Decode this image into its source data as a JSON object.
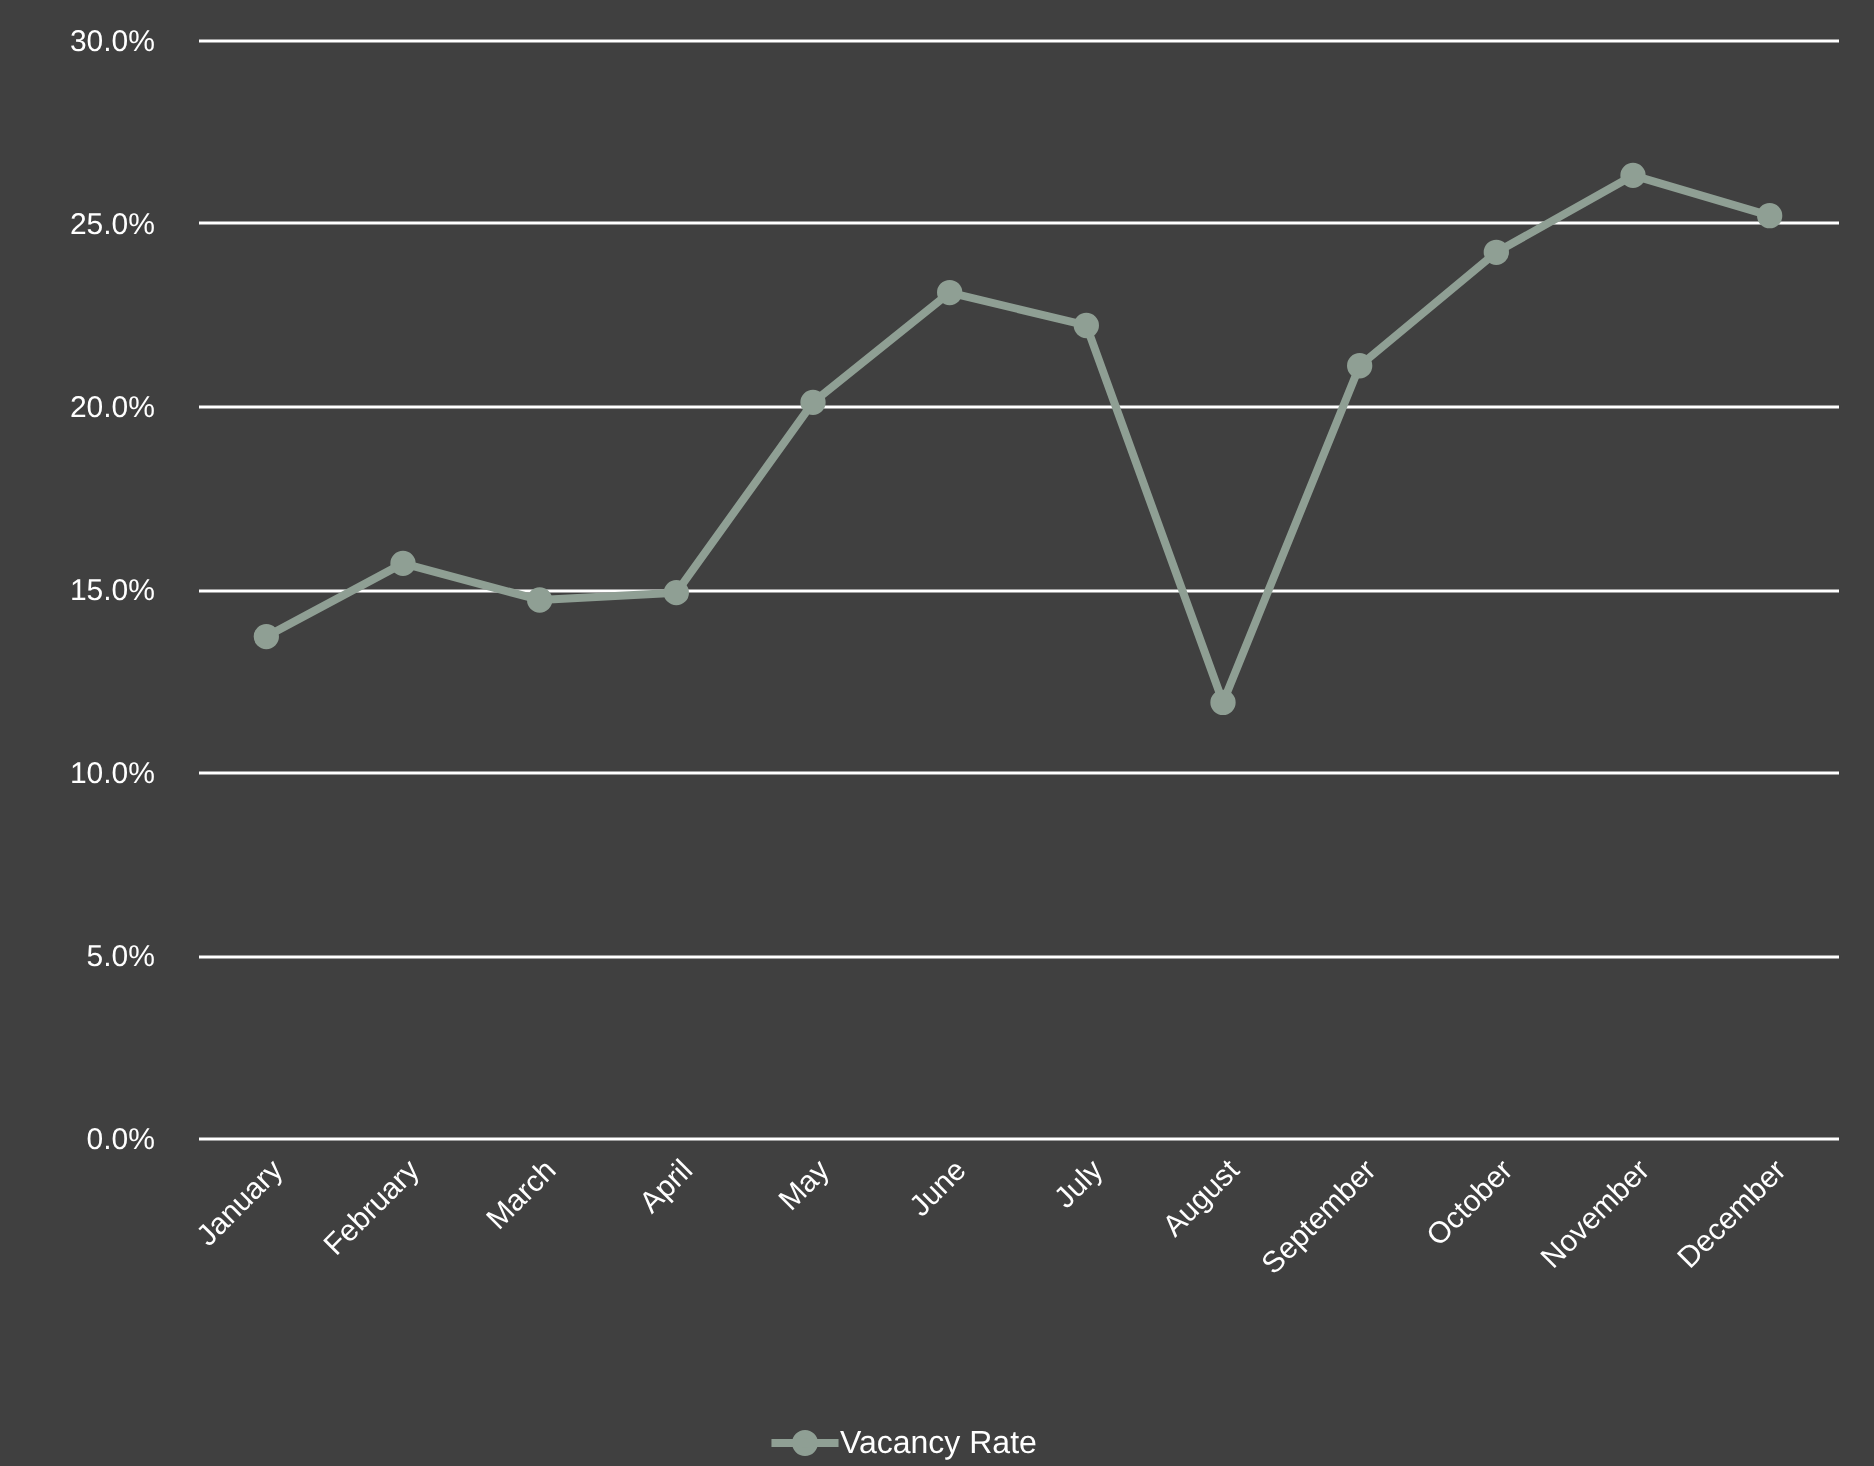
{
  "chart_data": {
    "type": "line",
    "categories": [
      "January",
      "February",
      "March",
      "April",
      "May",
      "June",
      "July",
      "August",
      "September",
      "October",
      "November",
      "December"
    ],
    "series": [
      {
        "name": "Vacancy Rate",
        "color": "#8f9f94",
        "values": [
          13.7,
          15.7,
          14.7,
          14.9,
          20.1,
          23.1,
          22.2,
          11.9,
          21.1,
          24.2,
          26.3,
          25.2
        ]
      }
    ],
    "ylim": [
      0,
      30
    ],
    "yticks": [
      {
        "value": 0,
        "label": "0.0%"
      },
      {
        "value": 5,
        "label": "5.0%"
      },
      {
        "value": 10,
        "label": "10.0%"
      },
      {
        "value": 15,
        "label": "15.0%"
      },
      {
        "value": 20,
        "label": "20.0%"
      },
      {
        "value": 25,
        "label": "25.0%"
      },
      {
        "value": 30,
        "label": "30.0%"
      }
    ],
    "grid": "y",
    "legend": "bottom",
    "marker": "circle",
    "line_style": "solid"
  }
}
